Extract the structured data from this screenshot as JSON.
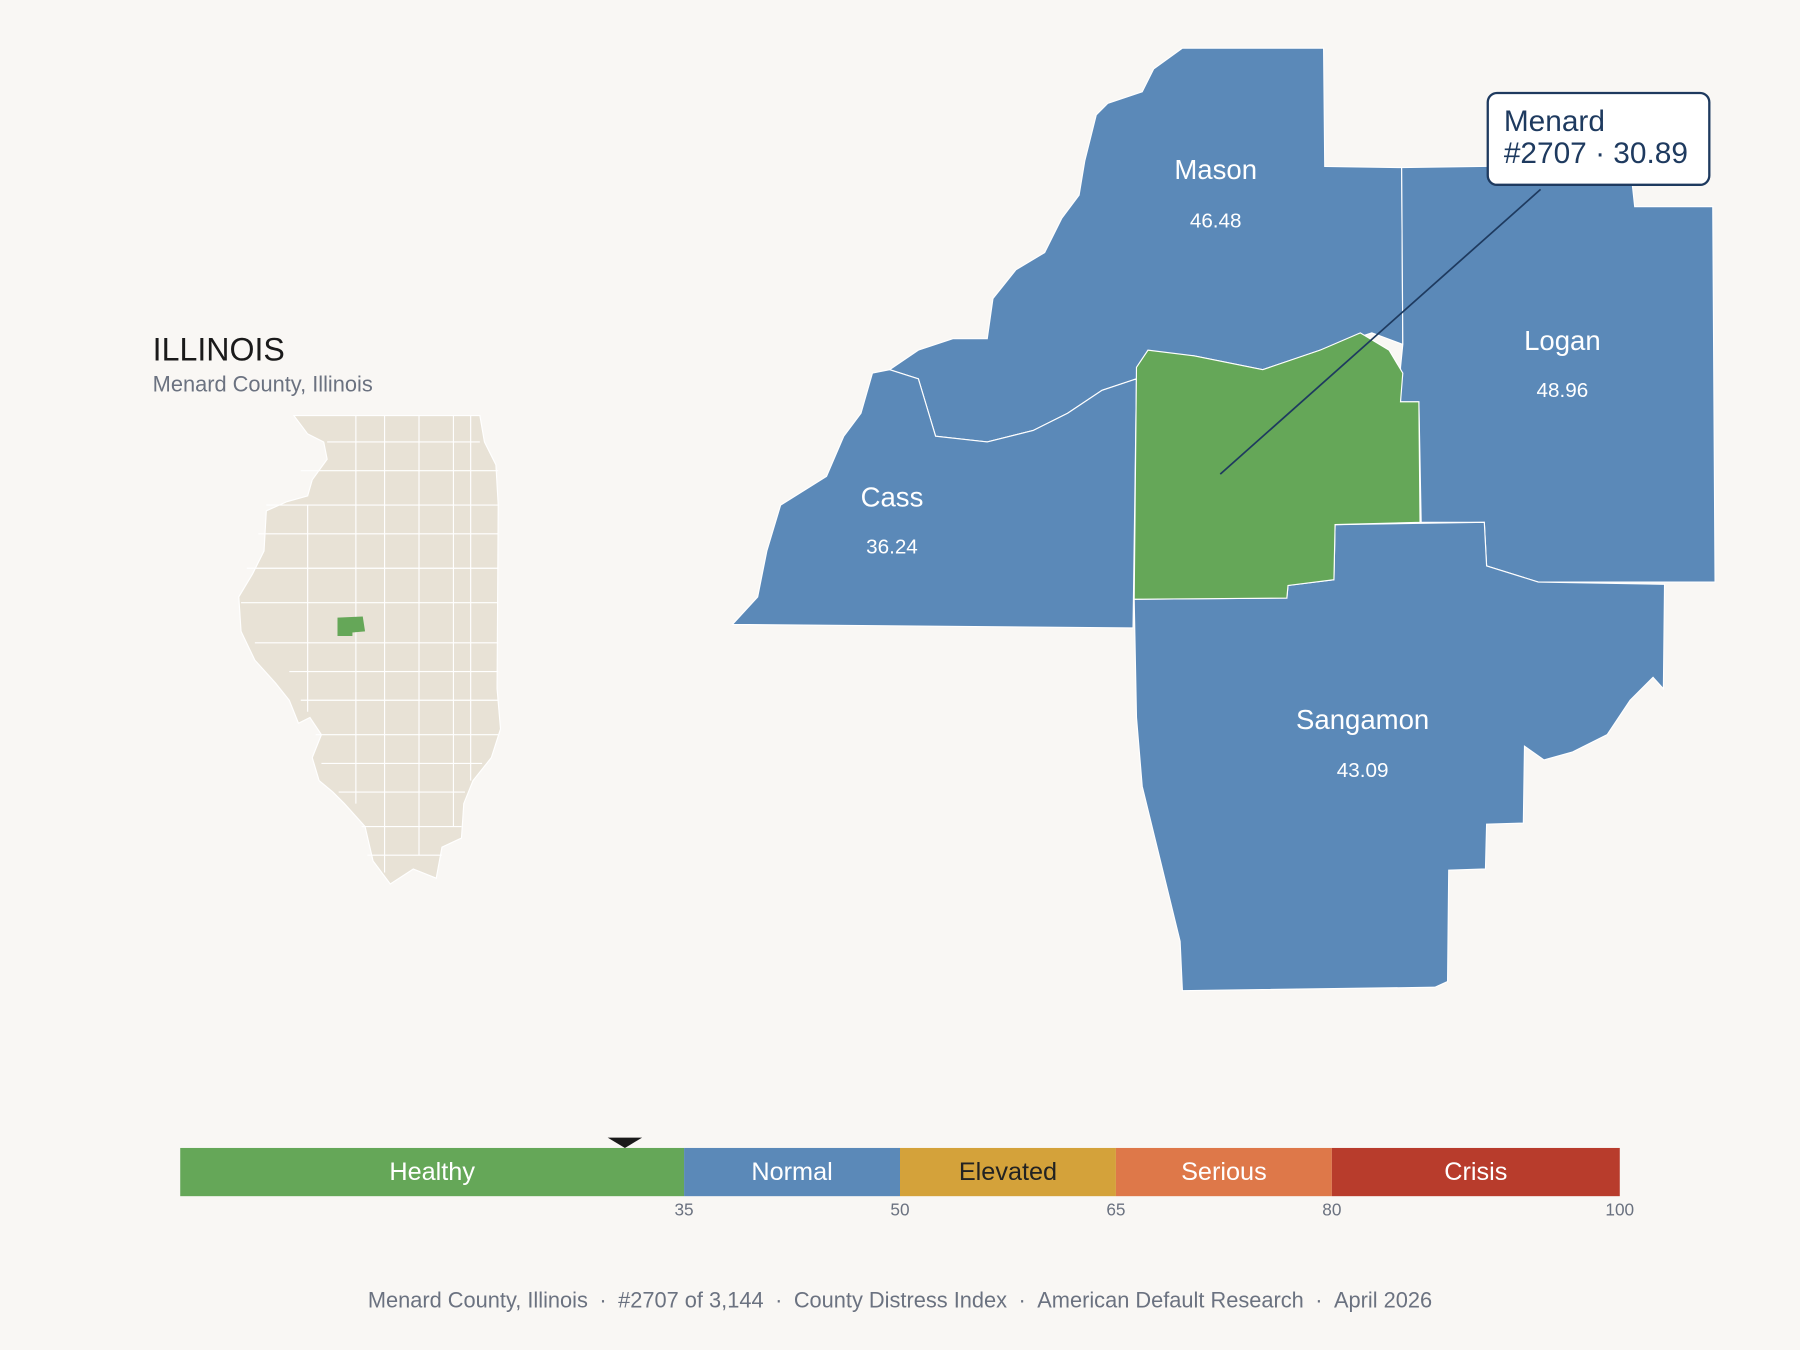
{
  "inset": {
    "title": "ILLINOIS",
    "subtitle": "Menard County, Illinois"
  },
  "counties": [
    {
      "name": "Mason",
      "value": 46.48
    },
    {
      "name": "Logan",
      "value": 48.96
    },
    {
      "name": "Cass",
      "value": 36.24
    },
    {
      "name": "Sangamon",
      "value": 43.09
    },
    {
      "name": "Menard",
      "value": 30.89
    }
  ],
  "callout": {
    "name": "Menard",
    "rank": "#2707",
    "separator": "·"
  },
  "scale": {
    "min": 0,
    "segments": [
      {
        "label": "Healthy",
        "end": 35,
        "color": "#65a758",
        "label_color": "#ffffff"
      },
      {
        "label": "Normal",
        "end": 50,
        "color": "#5b89b8",
        "label_color": "#ffffff"
      },
      {
        "label": "Elevated",
        "end": 65,
        "color": "#d4a23a",
        "label_color": "#222222"
      },
      {
        "label": "Serious",
        "end": 80,
        "color": "#de7849",
        "label_color": "#ffffff"
      },
      {
        "label": "Crisis",
        "end": 100,
        "color": "#b83c2c",
        "label_color": "#ffffff"
      }
    ]
  },
  "footer": {
    "separator": "·",
    "items": [
      "Menard County, Illinois",
      "#2707 of 3,144",
      "County Distress Index",
      "American Default Research",
      "April 2026"
    ]
  }
}
